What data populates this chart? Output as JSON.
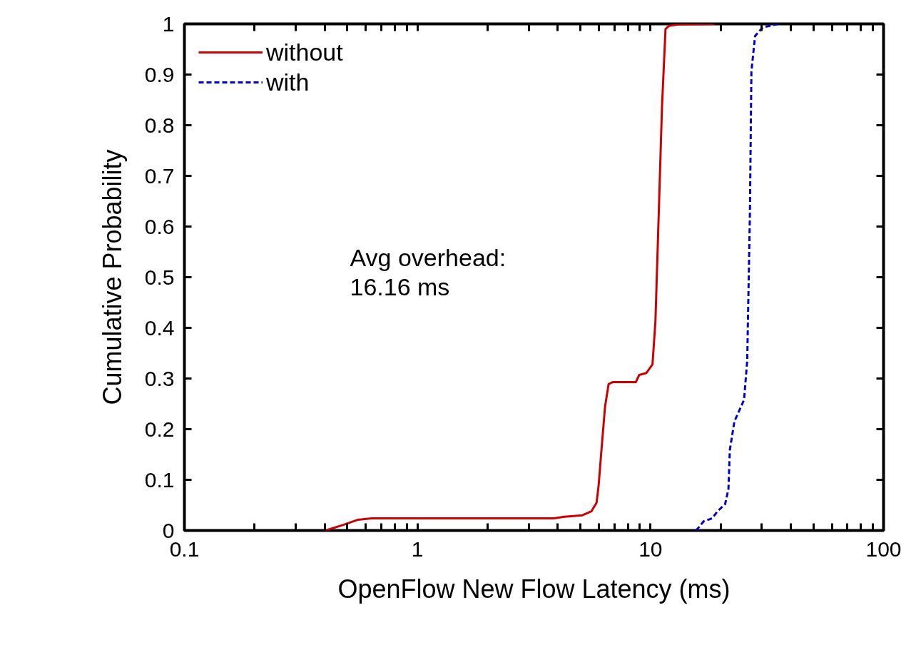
{
  "chart_data": {
    "type": "line",
    "xlabel": "OpenFlow New Flow Latency (ms)",
    "ylabel": "Cumulative Probability",
    "log": "x",
    "xlim": [
      0.1,
      100
    ],
    "ylim": [
      0,
      1
    ],
    "xticks": [
      0.1,
      {
        "value": 0.2,
        "label": null
      },
      {
        "value": 0.3,
        "label": null
      },
      {
        "value": 0.4,
        "label": null
      },
      {
        "value": 0.5,
        "label": null
      },
      {
        "value": 0.6,
        "label": null
      },
      {
        "value": 0.7,
        "label": null
      },
      {
        "value": 0.8,
        "label": null
      },
      {
        "value": 0.9,
        "label": null
      },
      1,
      {
        "value": 2,
        "label": null
      },
      {
        "value": 3,
        "label": null
      },
      {
        "value": 4,
        "label": null
      },
      {
        "value": 5,
        "label": null
      },
      {
        "value": 6,
        "label": null
      },
      {
        "value": 7,
        "label": null
      },
      {
        "value": 8,
        "label": null
      },
      {
        "value": 9,
        "label": null
      },
      10,
      {
        "value": 20,
        "label": null
      },
      {
        "value": 30,
        "label": null
      },
      {
        "value": 40,
        "label": null
      },
      {
        "value": 50,
        "label": null
      },
      {
        "value": 60,
        "label": null
      },
      {
        "value": 70,
        "label": null
      },
      {
        "value": 80,
        "label": null
      },
      {
        "value": 90,
        "label": null
      },
      100
    ],
    "yticks": [
      0,
      0.1,
      0.2,
      0.3,
      0.4,
      0.5,
      0.6,
      0.7,
      0.8,
      0.9,
      1
    ],
    "grid": false,
    "legend": "top left",
    "marker": "none",
    "annotations": [
      "Avg overhead:\n16.16 ms"
    ],
    "series": [
      {
        "name": "without",
        "color": "#cc0000",
        "line_style": "solid",
        "x": [
          0.403,
          0.481,
          0.553,
          0.637,
          1.12,
          3.84,
          4.27,
          5.1,
          5.58,
          5.87,
          5.99,
          6.16,
          6.38,
          6.61,
          6.9,
          8.65,
          8.95,
          9.61,
          10.2,
          10.5,
          10.8,
          11.2,
          11.6,
          12.0,
          13.2,
          18.8
        ],
        "values": [
          0,
          0.011,
          0.021,
          0.024,
          0.024,
          0.024,
          0.027,
          0.03,
          0.038,
          0.055,
          0.089,
          0.159,
          0.244,
          0.289,
          0.293,
          0.293,
          0.307,
          0.311,
          0.328,
          0.413,
          0.596,
          0.835,
          0.99,
          0.996,
          0.999,
          1
        ]
      },
      {
        "name": "with",
        "color": "#0000cc",
        "line_style": "dashed",
        "x": [
          15.7,
          16.9,
          18.4,
          19.4,
          20.9,
          21.6,
          21.9,
          22.9,
          25.2,
          26.0,
          26.7,
          27.1,
          28.1,
          30.3,
          35.4
        ],
        "values": [
          0,
          0.018,
          0.024,
          0.038,
          0.052,
          0.082,
          0.159,
          0.215,
          0.258,
          0.335,
          0.624,
          0.906,
          0.976,
          0.993,
          1
        ]
      }
    ]
  }
}
